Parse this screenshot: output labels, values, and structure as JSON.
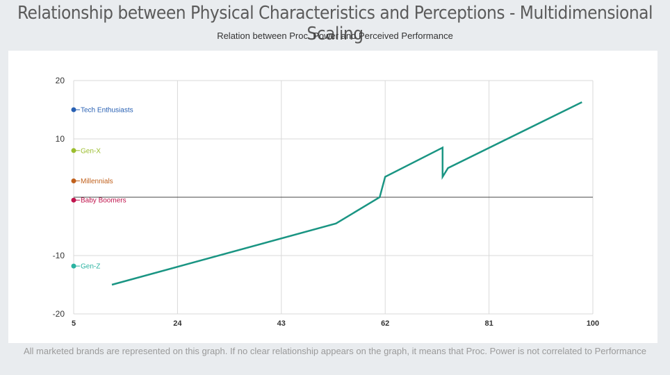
{
  "header": {
    "title": "Relationship between Physical Characteristics and Perceptions - Multidimensional Scaling",
    "subtitle": "Relation between Proc. Power and Perceived Performance"
  },
  "footer": {
    "note": "All marketed brands are represented on this graph. If no clear relationship appears on the graph, it means that Proc. Power is not correlated to Performance"
  },
  "chart_data": {
    "type": "line",
    "xlim": [
      5,
      100
    ],
    "ylim": [
      -20,
      20
    ],
    "xticks": [
      5,
      24,
      43,
      62,
      81,
      100
    ],
    "yticks": [
      20,
      10,
      -10,
      -20
    ],
    "grid": true,
    "zero_line": true,
    "series": [
      {
        "color": "#1a9583",
        "points": [
          [
            12,
            -15
          ],
          [
            53,
            -4.5
          ],
          [
            61,
            0
          ],
          [
            62,
            3.5
          ],
          [
            72.5,
            8.5
          ],
          [
            72.5,
            3.5
          ],
          [
            73.5,
            5
          ],
          [
            98,
            16.3
          ]
        ]
      }
    ],
    "segments": [
      {
        "label": "Tech Enthusiasts",
        "y": 15,
        "color": "#2860b3"
      },
      {
        "label": "Gen-X",
        "y": 8,
        "color": "#9bbd2e"
      },
      {
        "label": "Millennials",
        "y": 2.8,
        "color": "#c0601c"
      },
      {
        "label": "Baby Boomers",
        "y": -0.5,
        "color": "#c0144d"
      },
      {
        "label": "Gen-Z",
        "y": -11.8,
        "color": "#2bb3a1"
      }
    ],
    "colors": {
      "grid": "#d9d9d9",
      "zero_line": "#444444",
      "tick_text": "#333333"
    }
  }
}
